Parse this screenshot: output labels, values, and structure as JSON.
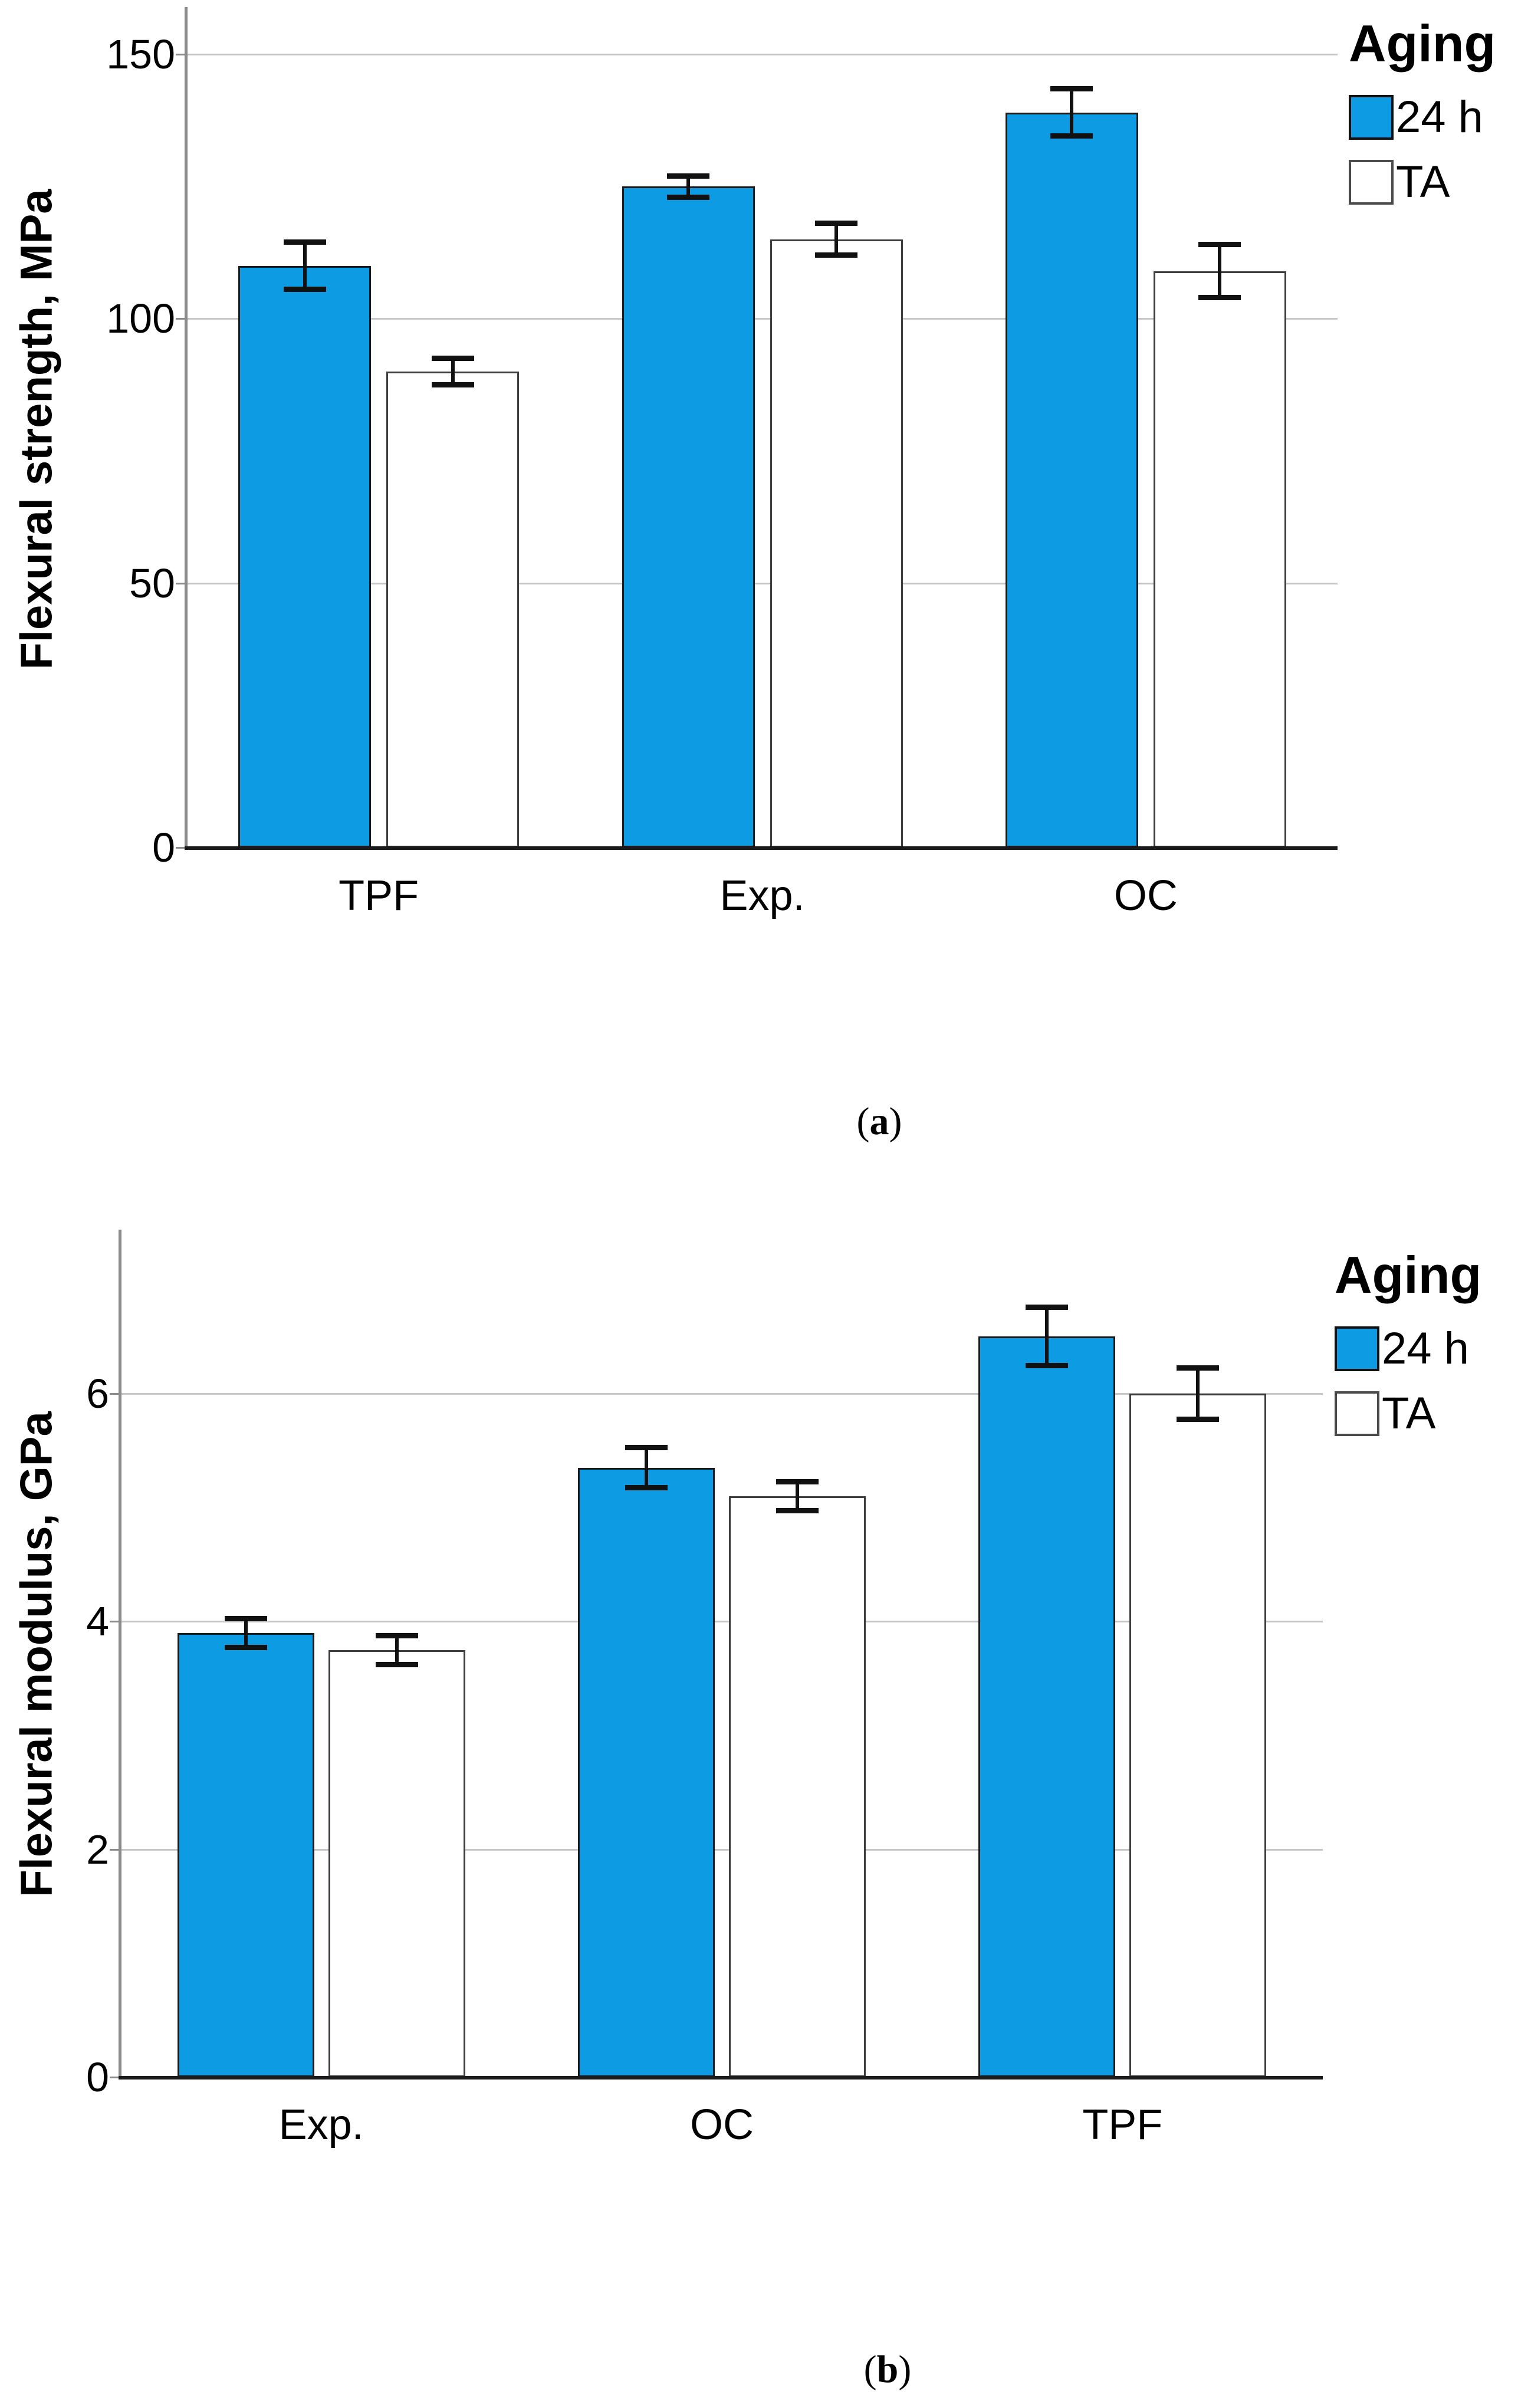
{
  "colors": {
    "bar_blue": "#0D9CE4",
    "bar_white": "#FFFFFF",
    "blue_bar_border": "#1A1A1A",
    "white_bar_border": "#3D3D3D",
    "gridline": "#C6C6C6",
    "y_axis": "#8A8A8A",
    "x_axis": "#1A1A1A",
    "error_bar": "#111111",
    "text": "#000000"
  },
  "legend": {
    "title": "Aging",
    "items": [
      {
        "label": "24 h",
        "swatch": "filled-blue-square"
      },
      {
        "label": "TA",
        "swatch": "empty-white-square"
      }
    ]
  },
  "captions": {
    "a": {
      "open": "(",
      "letter": "a",
      "close": ")"
    },
    "b": {
      "open": "(",
      "letter": "b",
      "close": ")"
    }
  },
  "chart_data": [
    {
      "id": "a",
      "type": "bar",
      "title": "",
      "xlabel": "",
      "ylabel": "Flexural strength, MPa",
      "categories": [
        "TPF",
        "Exp.",
        "OC"
      ],
      "series": [
        {
          "name": "24 h",
          "values": [
            110,
            125,
            139
          ],
          "errors": [
            5,
            2.5,
            5
          ],
          "style": "filled"
        },
        {
          "name": "TA",
          "values": [
            90,
            115,
            109
          ],
          "errors": [
            3,
            3.5,
            5.5
          ],
          "style": "empty"
        }
      ],
      "yticks": [
        0,
        50,
        100,
        150
      ],
      "ylim": [
        0,
        159
      ],
      "grid": true,
      "legend_position": "top-right",
      "legend_title": "Aging"
    },
    {
      "id": "b",
      "type": "bar",
      "title": "",
      "xlabel": "",
      "ylabel": "Flexural modulus, GPa",
      "categories": [
        "Exp.",
        "OC",
        "TPF"
      ],
      "series": [
        {
          "name": "24 h",
          "values": [
            3.9,
            5.35,
            6.5
          ],
          "errors": [
            0.15,
            0.2,
            0.28
          ],
          "style": "filled"
        },
        {
          "name": "TA",
          "values": [
            3.75,
            5.1,
            6.0
          ],
          "errors": [
            0.15,
            0.15,
            0.25
          ],
          "style": "empty"
        }
      ],
      "yticks": [
        0,
        2,
        4,
        6
      ],
      "ylim": [
        0,
        7.44
      ],
      "grid": true,
      "legend_position": "top-right",
      "legend_title": "Aging"
    }
  ]
}
